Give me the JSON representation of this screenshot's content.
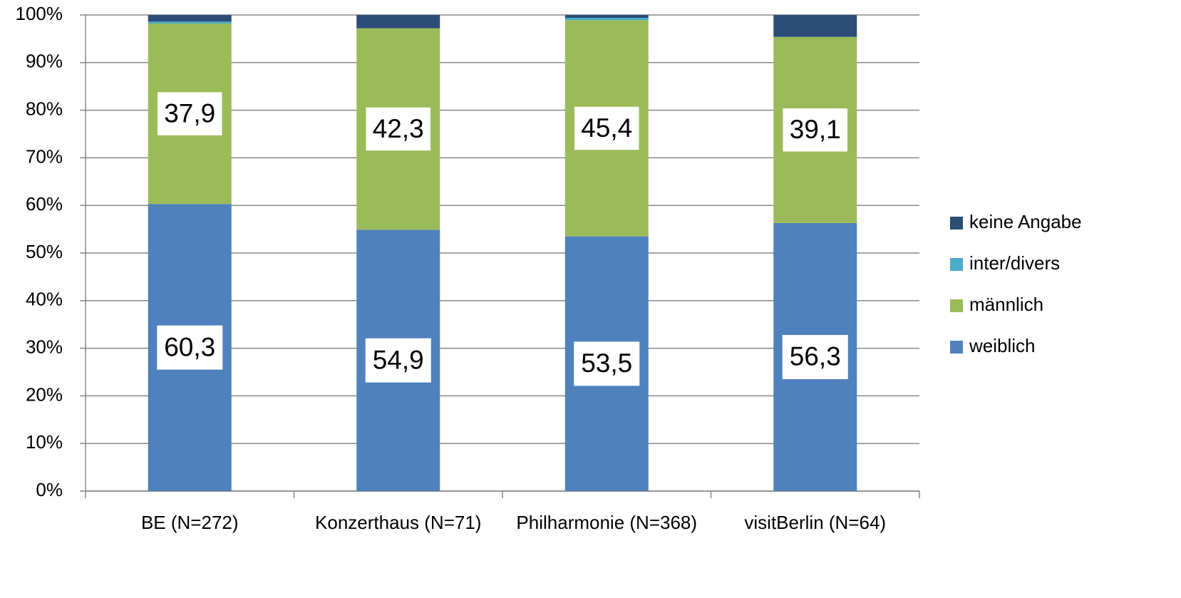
{
  "chart_data": {
    "type": "stacked-bar",
    "categories": [
      "BE (N=272)",
      "Konzerthaus (N=71)",
      "Philharmonie (N=368)",
      "visitBerlin (N=64)"
    ],
    "series": [
      {
        "name": "weiblich",
        "color": "#4f81bd",
        "values": [
          60.3,
          54.9,
          53.5,
          56.3
        ],
        "value_labels": [
          "60,3",
          "54,9",
          "53,5",
          "56,3"
        ]
      },
      {
        "name": "männlich",
        "color": "#9bbb59",
        "values": [
          37.9,
          42.3,
          45.4,
          39.1
        ],
        "value_labels": [
          "37,9",
          "42,3",
          "45,4",
          "39,1"
        ]
      },
      {
        "name": "inter/divers",
        "color": "#4bacc6",
        "values": [
          0.4,
          0,
          0.5,
          0
        ]
      },
      {
        "name": "keine Angabe",
        "color": "#2c4d75",
        "values": [
          1.4,
          2.8,
          0.6,
          4.6
        ]
      }
    ],
    "ylim": [
      0,
      100
    ],
    "yticks": [
      {
        "value": 0,
        "label": "0%"
      },
      {
        "value": 10,
        "label": "10%"
      },
      {
        "value": 20,
        "label": "20%"
      },
      {
        "value": 30,
        "label": "30%"
      },
      {
        "value": 40,
        "label": "40%"
      },
      {
        "value": 50,
        "label": "50%"
      },
      {
        "value": 60,
        "label": "60%"
      },
      {
        "value": 70,
        "label": "70%"
      },
      {
        "value": 80,
        "label": "80%"
      },
      {
        "value": 90,
        "label": "90%"
      },
      {
        "value": 100,
        "label": "100%"
      }
    ],
    "grid": true,
    "legend": "right"
  }
}
